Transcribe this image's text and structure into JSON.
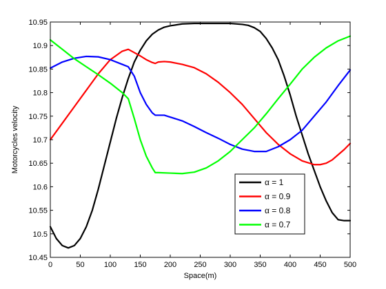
{
  "chart_data": {
    "type": "line",
    "title": "",
    "xlabel": "Space(m)",
    "ylabel": "Motorcycles velocity",
    "xlim": [
      0,
      500
    ],
    "ylim": [
      10.45,
      10.95
    ],
    "xticks": [
      0,
      50,
      100,
      150,
      200,
      250,
      300,
      350,
      400,
      450,
      500
    ],
    "yticks": [
      10.45,
      10.5,
      10.55,
      10.6,
      10.65,
      10.7,
      10.75,
      10.8,
      10.85,
      10.9,
      10.95
    ],
    "xtick_labels": [
      "0",
      "50",
      "100",
      "150",
      "200",
      "250",
      "300",
      "350",
      "400",
      "450",
      "500"
    ],
    "ytick_labels": [
      "10.45",
      "10.5",
      "10.55",
      "10.6",
      "10.65",
      "10.7",
      "10.75",
      "10.8",
      "10.85",
      "10.9",
      "10.95"
    ],
    "grid": false,
    "legend_position": "lower-right",
    "series": [
      {
        "name": "α = 1",
        "color": "#000000",
        "x": [
          0,
          10,
          20,
          30,
          40,
          50,
          60,
          70,
          80,
          90,
          100,
          110,
          120,
          130,
          140,
          150,
          160,
          170,
          180,
          190,
          200,
          220,
          240,
          260,
          280,
          300,
          320,
          330,
          340,
          350,
          360,
          370,
          380,
          390,
          400,
          410,
          420,
          430,
          440,
          450,
          460,
          470,
          480,
          490,
          500
        ],
        "y": [
          10.515,
          10.49,
          10.475,
          10.47,
          10.475,
          10.49,
          10.515,
          10.55,
          10.595,
          10.645,
          10.695,
          10.745,
          10.79,
          10.83,
          10.865,
          10.89,
          10.91,
          10.924,
          10.933,
          10.939,
          10.942,
          10.946,
          10.947,
          10.947,
          10.947,
          10.947,
          10.945,
          10.943,
          10.938,
          10.93,
          10.915,
          10.895,
          10.87,
          10.835,
          10.795,
          10.75,
          10.71,
          10.67,
          10.635,
          10.6,
          10.57,
          10.545,
          10.53,
          10.528,
          10.528
        ]
      },
      {
        "name": "α = 0.9",
        "color": "#ff0000",
        "x": [
          0,
          20,
          40,
          60,
          80,
          100,
          120,
          130,
          140,
          150,
          160,
          170,
          175,
          180,
          190,
          200,
          220,
          240,
          260,
          280,
          300,
          320,
          340,
          360,
          380,
          400,
          420,
          440,
          450,
          460,
          470,
          480,
          490,
          500
        ],
        "y": [
          10.7,
          10.735,
          10.77,
          10.805,
          10.84,
          10.87,
          10.888,
          10.892,
          10.885,
          10.878,
          10.87,
          10.864,
          10.862,
          10.865,
          10.866,
          10.865,
          10.86,
          10.853,
          10.84,
          10.822,
          10.8,
          10.775,
          10.745,
          10.715,
          10.69,
          10.67,
          10.655,
          10.647,
          10.647,
          10.65,
          10.657,
          10.668,
          10.679,
          10.692
        ]
      },
      {
        "name": "α = 0.8",
        "color": "#0000ff",
        "x": [
          0,
          20,
          40,
          60,
          80,
          100,
          120,
          130,
          140,
          150,
          160,
          170,
          175,
          180,
          190,
          200,
          220,
          240,
          260,
          280,
          300,
          320,
          340,
          360,
          380,
          400,
          420,
          440,
          460,
          480,
          500
        ],
        "y": [
          10.852,
          10.865,
          10.873,
          10.877,
          10.876,
          10.87,
          10.86,
          10.855,
          10.835,
          10.8,
          10.775,
          10.757,
          10.752,
          10.752,
          10.752,
          10.748,
          10.74,
          10.728,
          10.715,
          10.703,
          10.69,
          10.68,
          10.675,
          10.675,
          10.685,
          10.7,
          10.72,
          10.75,
          10.78,
          10.815,
          10.848
        ]
      },
      {
        "name": "α = 0.7",
        "color": "#00ff00",
        "x": [
          0,
          20,
          40,
          60,
          80,
          100,
          120,
          130,
          140,
          150,
          160,
          170,
          175,
          180,
          200,
          220,
          240,
          260,
          280,
          300,
          320,
          340,
          360,
          380,
          400,
          420,
          440,
          460,
          480,
          500
        ],
        "y": [
          10.912,
          10.892,
          10.872,
          10.855,
          10.838,
          10.82,
          10.8,
          10.787,
          10.745,
          10.7,
          10.665,
          10.64,
          10.63,
          10.63,
          10.629,
          10.628,
          10.631,
          10.64,
          10.655,
          10.675,
          10.7,
          10.725,
          10.755,
          10.787,
          10.818,
          10.85,
          10.875,
          10.895,
          10.91,
          10.92
        ]
      }
    ]
  }
}
